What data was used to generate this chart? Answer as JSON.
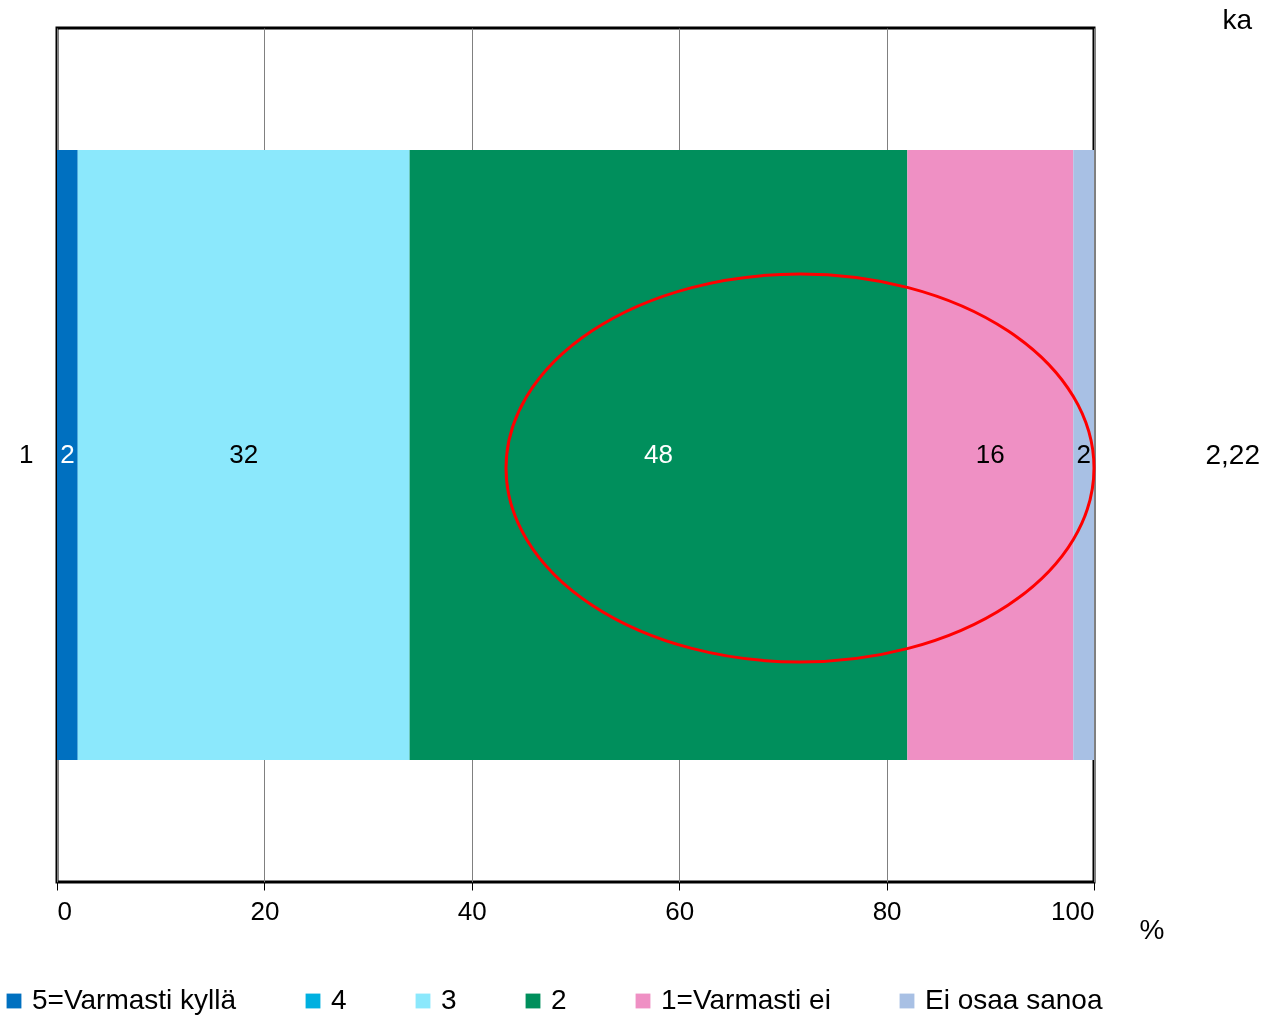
{
  "chart_data": {
    "type": "bar",
    "orientation": "horizontal",
    "stacked": true,
    "categories": [
      "1"
    ],
    "series": [
      {
        "name": "5=Varmasti kyllä",
        "color": "#0070c0",
        "values": [
          2
        ],
        "value_labels": [
          "2"
        ]
      },
      {
        "name": "4",
        "color": "#00b0e0",
        "values": [
          0
        ],
        "value_labels": [
          null
        ]
      },
      {
        "name": "3",
        "color": "#8be8fc",
        "values": [
          32
        ],
        "value_labels": [
          "32"
        ]
      },
      {
        "name": "2",
        "color": "#008f5c",
        "values": [
          48
        ],
        "value_labels": [
          "48"
        ]
      },
      {
        "name": "1=Varmasti ei",
        "color": "#ef90c4",
        "values": [
          16
        ],
        "value_labels": [
          "16"
        ]
      },
      {
        "name": "Ei osaa sanoa",
        "color": "#a8c0e4",
        "values": [
          2
        ],
        "value_labels": [
          "2"
        ]
      }
    ],
    "xlim": [
      0,
      100
    ],
    "xticks": [
      0,
      20,
      40,
      60,
      80,
      100
    ],
    "xlabel": "%",
    "grid": "x",
    "legend": "bottom",
    "annotations": [
      "ka",
      "2,22"
    ]
  }
}
